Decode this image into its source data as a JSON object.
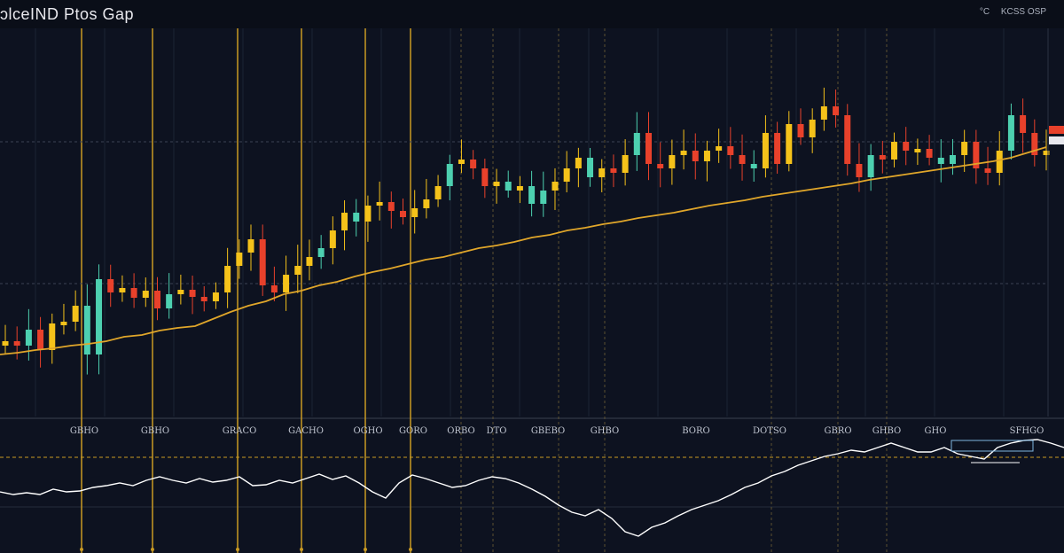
{
  "header": {
    "title": "ɔlceIND Ptos Gap",
    "right_items": [
      "°C",
      "KCSS OSP"
    ]
  },
  "colors": {
    "background": "#0d1220",
    "up": "#f5c21a",
    "down": "#e8412b",
    "teal": "#4dd0b0",
    "ma_line": "#e0a62a",
    "vline": "#c99a22",
    "oscillator": "#ffffff"
  },
  "chart_data": [
    {
      "type": "candlestick",
      "name": "",
      "xlabel": "",
      "ylabel": "",
      "y_axis": "unlabeled",
      "x_ticks": [
        "GBHO",
        "GBHO",
        "GRACO",
        "GACHO",
        "OGHO",
        "GORO",
        "ORBO",
        "DTO",
        "GBEBO",
        "GHBO",
        "BORO",
        "DOTSO",
        "GBRO",
        "GHBO",
        "GHO",
        "SFHGO"
      ],
      "price": [
        385,
        390,
        372,
        395,
        365,
        363,
        345,
        400,
        315,
        330,
        325,
        336,
        328,
        348,
        332,
        327,
        335,
        340,
        330,
        300,
        285,
        270,
        322,
        330,
        310,
        300,
        290,
        280,
        260,
        240,
        250,
        232,
        228,
        238,
        245,
        235,
        225,
        210,
        185,
        180,
        190,
        210,
        205,
        215,
        210,
        230,
        215,
        205,
        190,
        178,
        200,
        190,
        195,
        175,
        150,
        185,
        190,
        175,
        170,
        182,
        170,
        165,
        175,
        185,
        190,
        150,
        185,
        140,
        155,
        135,
        120,
        130,
        185,
        200,
        175,
        180,
        160,
        170,
        168,
        178,
        185,
        175,
        160,
        190,
        195,
        170,
        130,
        150,
        175,
        170
      ],
      "moving_average": [
        400,
        398,
        395,
        393,
        390,
        388,
        385,
        380,
        378,
        373,
        370,
        368,
        360,
        352,
        345,
        340,
        332,
        328,
        322,
        318,
        312,
        307,
        303,
        298,
        293,
        290,
        285,
        280,
        277,
        273,
        268,
        265,
        260,
        257,
        253,
        250,
        246,
        243,
        240,
        236,
        232,
        229,
        226,
        222,
        219,
        216,
        213,
        210,
        207,
        203,
        200,
        197,
        194,
        191,
        188,
        185,
        182,
        178,
        172,
        166
      ],
      "vertical_markers": 12,
      "horizontal_refs": 2
    },
    {
      "type": "line",
      "name": "",
      "values": [
        555,
        558,
        556,
        558,
        552,
        555,
        554,
        550,
        548,
        545,
        548,
        542,
        538,
        542,
        545,
        540,
        544,
        542,
        538,
        548,
        547,
        542,
        545,
        540,
        535,
        541,
        537,
        545,
        555,
        562,
        545,
        536,
        540,
        545,
        550,
        548,
        542,
        538,
        540,
        545,
        552,
        560,
        570,
        578,
        582,
        575,
        585,
        600,
        605,
        595,
        590,
        582,
        575,
        570,
        565,
        558,
        550,
        545,
        537,
        532,
        525,
        520,
        515,
        512,
        508,
        510,
        505,
        500,
        505,
        510,
        510,
        505,
        512,
        515,
        518,
        505,
        500,
        497,
        496,
        500,
        505
      ]
    }
  ]
}
